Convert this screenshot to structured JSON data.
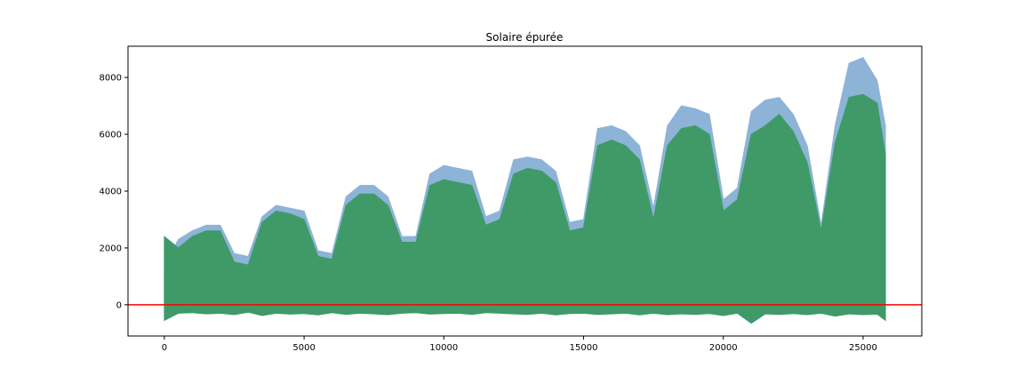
{
  "chart_data": {
    "type": "area",
    "title": "Solaire épurée",
    "xlabel": "",
    "ylabel": "",
    "xlim": [
      -1300,
      27100
    ],
    "ylim": [
      -1100,
      9100
    ],
    "x_ticks": [
      0,
      5000,
      10000,
      15000,
      20000,
      25000
    ],
    "x_tick_labels": [
      "0",
      "5000",
      "10000",
      "15000",
      "20000",
      "25000"
    ],
    "y_ticks": [
      0,
      2000,
      4000,
      6000,
      8000
    ],
    "y_tick_labels": [
      "0",
      "2000",
      "4000",
      "6000",
      "8000"
    ],
    "grid": false,
    "hline": {
      "y": 0,
      "color": "#ff0000"
    },
    "series": [
      {
        "color": "#8db3d7",
        "x": [
          0,
          500,
          1000,
          1500,
          2000,
          2500,
          3000,
          3500,
          4000,
          4500,
          5000,
          5500,
          6000,
          6500,
          7000,
          7500,
          8000,
          8500,
          9000,
          9500,
          10000,
          10500,
          11000,
          11500,
          12000,
          12500,
          13000,
          13500,
          14000,
          14500,
          15000,
          15500,
          16000,
          16500,
          17000,
          17500,
          18000,
          18500,
          19000,
          19500,
          20000,
          20500,
          21000,
          21500,
          22000,
          22500,
          23000,
          23500,
          24000,
          24500,
          25000,
          25500,
          25800
        ],
        "max": [
          1300,
          2300,
          2600,
          2800,
          2800,
          1800,
          1700,
          3100,
          3500,
          3400,
          3300,
          1900,
          1800,
          3800,
          4200,
          4200,
          3800,
          2400,
          2400,
          4600,
          4900,
          4800,
          4700,
          3100,
          3300,
          5100,
          5200,
          5100,
          4700,
          2900,
          3000,
          6200,
          6300,
          6100,
          5600,
          3400,
          6300,
          7000,
          6900,
          6700,
          3700,
          4100,
          6800,
          7200,
          7300,
          6700,
          5600,
          2800,
          6300,
          8500,
          8700,
          7900,
          6300
        ],
        "min": [
          0,
          0,
          0,
          0,
          0,
          0,
          0,
          0,
          0,
          0,
          0,
          0,
          0,
          0,
          0,
          0,
          0,
          0,
          0,
          0,
          0,
          0,
          0,
          0,
          0,
          0,
          0,
          0,
          0,
          0,
          0,
          0,
          0,
          0,
          0,
          0,
          0,
          0,
          0,
          0,
          0,
          0,
          0,
          0,
          0,
          0,
          0,
          0,
          0,
          0,
          0,
          0,
          0
        ]
      },
      {
        "color": "#3f9a68",
        "x": [
          0,
          500,
          1000,
          1500,
          2000,
          2500,
          3000,
          3500,
          4000,
          4500,
          5000,
          5500,
          6000,
          6500,
          7000,
          7500,
          8000,
          8500,
          9000,
          9500,
          10000,
          10500,
          11000,
          11500,
          12000,
          12500,
          13000,
          13500,
          14000,
          14500,
          15000,
          15500,
          16000,
          16500,
          17000,
          17500,
          18000,
          18500,
          19000,
          19500,
          20000,
          20500,
          21000,
          21500,
          22000,
          22500,
          23000,
          23500,
          24000,
          24500,
          25000,
          25500,
          25800
        ],
        "max": [
          2400,
          2000,
          2400,
          2600,
          2600,
          1500,
          1400,
          2900,
          3300,
          3200,
          3000,
          1700,
          1600,
          3500,
          3900,
          3900,
          3500,
          2200,
          2200,
          4200,
          4400,
          4300,
          4200,
          2800,
          3000,
          4600,
          4800,
          4700,
          4300,
          2600,
          2700,
          5600,
          5800,
          5600,
          5100,
          3000,
          5600,
          6200,
          6300,
          6000,
          3300,
          3700,
          6000,
          6300,
          6700,
          6100,
          5000,
          2600,
          5700,
          7300,
          7400,
          7100,
          5300
        ],
        "min": [
          -550,
          -300,
          -280,
          -320,
          -300,
          -350,
          -260,
          -380,
          -300,
          -330,
          -310,
          -360,
          -280,
          -340,
          -300,
          -320,
          -350,
          -300,
          -280,
          -330,
          -310,
          -300,
          -340,
          -280,
          -300,
          -320,
          -340,
          -300,
          -360,
          -310,
          -300,
          -340,
          -320,
          -300,
          -360,
          -300,
          -350,
          -320,
          -340,
          -310,
          -380,
          -300,
          -650,
          -320,
          -340,
          -310,
          -350,
          -300,
          -400,
          -320,
          -350,
          -330,
          -550
        ]
      }
    ]
  }
}
